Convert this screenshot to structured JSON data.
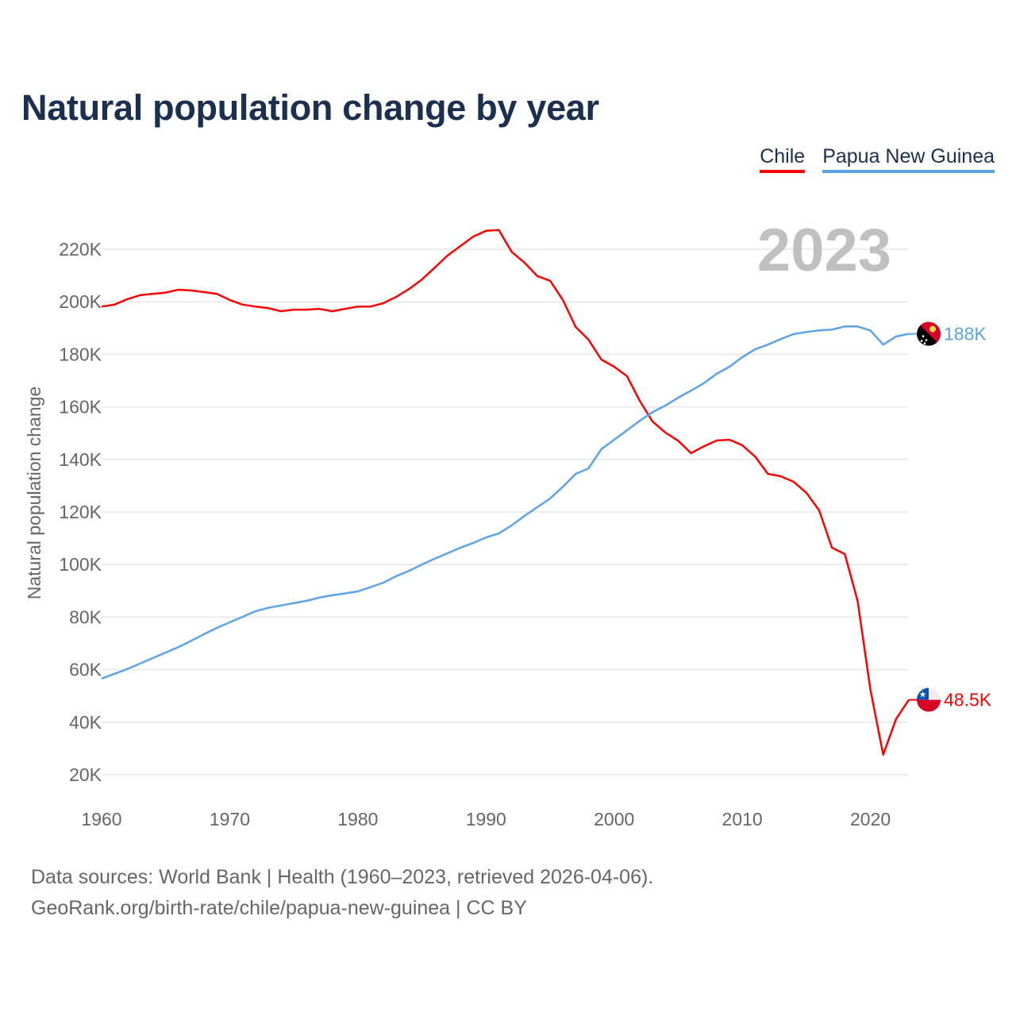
{
  "chart_data": {
    "type": "line",
    "title": "Natural population change by year",
    "xlabel": "",
    "ylabel": "Natural population change",
    "xlim": [
      1960,
      2023
    ],
    "ylim": [
      20000,
      220000
    ],
    "x_ticks": [
      1960,
      1970,
      1980,
      1990,
      2000,
      2010,
      2020
    ],
    "x_tick_labels": [
      "1960",
      "1970",
      "1980",
      "1990",
      "2000",
      "2010",
      "2020"
    ],
    "y_ticks": [
      20000,
      40000,
      60000,
      80000,
      100000,
      120000,
      140000,
      160000,
      180000,
      200000,
      220000
    ],
    "y_tick_labels": [
      "20K",
      "40K",
      "60K",
      "80K",
      "100K",
      "120K",
      "140K",
      "160K",
      "180K",
      "200K",
      "220K"
    ],
    "grid": true,
    "legend_position": "top-right",
    "year_watermark": "2023",
    "x": [
      1960,
      1961,
      1962,
      1963,
      1964,
      1965,
      1966,
      1967,
      1968,
      1969,
      1970,
      1971,
      1972,
      1973,
      1974,
      1975,
      1976,
      1977,
      1978,
      1979,
      1980,
      1981,
      1982,
      1983,
      1984,
      1985,
      1986,
      1987,
      1988,
      1989,
      1990,
      1991,
      1992,
      1993,
      1994,
      1995,
      1996,
      1997,
      1998,
      1999,
      2000,
      2001,
      2002,
      2003,
      2004,
      2005,
      2006,
      2007,
      2008,
      2009,
      2010,
      2011,
      2012,
      2013,
      2014,
      2015,
      2016,
      2017,
      2018,
      2019,
      2020,
      2021,
      2022,
      2023
    ],
    "series": [
      {
        "name": "Chile",
        "color": "#ff0000",
        "end_label": "48.5K",
        "flag": "chile-flag",
        "values": [
          198200,
          198900,
          201000,
          202500,
          203000,
          203500,
          204600,
          204300,
          203700,
          203000,
          200700,
          198900,
          198200,
          197600,
          196400,
          197000,
          197000,
          197300,
          196400,
          197300,
          198200,
          198200,
          199500,
          201900,
          204900,
          208500,
          213000,
          217600,
          221200,
          224800,
          227000,
          227300,
          219000,
          214900,
          209800,
          208000,
          200700,
          190400,
          185600,
          178000,
          175300,
          171700,
          162300,
          154400,
          150200,
          147100,
          142400,
          145000,
          147200,
          147500,
          145400,
          141100,
          134500,
          133600,
          131500,
          127300,
          120600,
          106400,
          104000,
          86200,
          52300,
          27600,
          41200,
          48500
        ]
      },
      {
        "name": "Papua New Guinea",
        "color": "#5ba3e6",
        "end_label": "188K",
        "flag": "papua-new-guinea-flag",
        "values": [
          56600,
          58400,
          60200,
          62300,
          64400,
          66500,
          68600,
          71000,
          73500,
          75900,
          78000,
          80100,
          82200,
          83500,
          84400,
          85300,
          86200,
          87400,
          88300,
          89000,
          89800,
          91400,
          93100,
          95600,
          97600,
          100000,
          102200,
          104300,
          106400,
          108200,
          110300,
          111800,
          114900,
          118500,
          121800,
          125100,
          129600,
          134500,
          136600,
          143900,
          147500,
          151100,
          154700,
          158000,
          160500,
          163500,
          166200,
          169000,
          172600,
          175300,
          178900,
          181900,
          183700,
          185800,
          187700,
          188500,
          189100,
          189400,
          190600,
          190600,
          189100,
          183700,
          186800,
          187800
        ]
      }
    ]
  },
  "footer": {
    "line1": "Data sources: World Bank | Health (1960–2023, retrieved 2026-04-06).",
    "line2": "GeoRank.org/birth-rate/chile/papua-new-guinea | CC BY"
  }
}
